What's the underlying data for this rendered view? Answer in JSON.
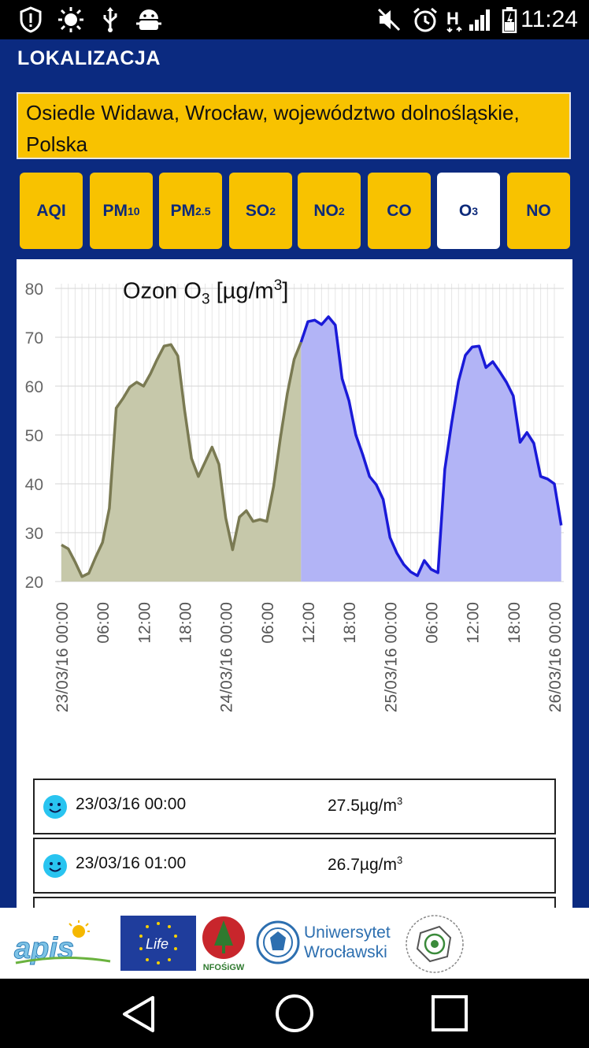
{
  "status": {
    "time": "11:24",
    "left_icons": [
      "alert-icon",
      "brightness-icon",
      "usb-icon",
      "android-debug-icon"
    ],
    "right_icons": [
      "mute-icon",
      "alarm-icon",
      "signal-h-icon",
      "signal-bars-icon",
      "battery-icon"
    ]
  },
  "header": {
    "title": "LOKALIZACJA"
  },
  "location": {
    "text": "Osiedle Widawa, Wrocław, województwo dolnośląskie, Polska"
  },
  "tabs": [
    {
      "label": "AQI",
      "sub": ""
    },
    {
      "label": "PM",
      "sub": "10"
    },
    {
      "label": "PM",
      "sub": "2.5"
    },
    {
      "label": "SO",
      "sub": "2"
    },
    {
      "label": "NO",
      "sub": "2"
    },
    {
      "label": "CO",
      "sub": ""
    },
    {
      "label": "O",
      "sub": "3",
      "active": true
    },
    {
      "label": "NO",
      "sub": ""
    }
  ],
  "chart_title": {
    "main": "Ozon O",
    "sub": "3",
    "unit_pre": " [µg/m",
    "unit_sup": "3",
    "unit_post": "]"
  },
  "chart_data": {
    "type": "area",
    "title": "Ozon O3 [µg/m3]",
    "ylim": [
      20,
      80
    ],
    "y_ticks": [
      "80",
      "70",
      "60",
      "50",
      "40",
      "30",
      "20"
    ],
    "x_tick_labels": [
      "23/03/16 00:00",
      "06:00",
      "12:00",
      "18:00",
      "24/03/16 00:00",
      "06:00",
      "12:00",
      "18:00",
      "25/03/16 00:00",
      "06:00",
      "12:00",
      "18:00",
      "26/03/16 00:00"
    ],
    "x_hours": [
      0,
      6,
      12,
      18,
      24,
      30,
      36,
      42,
      48,
      54,
      60,
      66,
      72
    ],
    "grid": true,
    "split_hour": 35,
    "series": [
      {
        "color_fill": "#c6c8aa",
        "color_line": "#7a7a52",
        "part": "observed"
      },
      {
        "color_fill": "#b2b4f6",
        "color_line": "#1a1ad8",
        "part": "forecast"
      }
    ],
    "points": [
      [
        0,
        27.5
      ],
      [
        1,
        26.7
      ],
      [
        2,
        24
      ],
      [
        3,
        21
      ],
      [
        4,
        21.7
      ],
      [
        5,
        25
      ],
      [
        6,
        28
      ],
      [
        7,
        35
      ],
      [
        8,
        55.5
      ],
      [
        9,
        57.5
      ],
      [
        10,
        59.8
      ],
      [
        11,
        60.8
      ],
      [
        12,
        60
      ],
      [
        13,
        62.5
      ],
      [
        14,
        65.5
      ],
      [
        15,
        68.2
      ],
      [
        16,
        68.5
      ],
      [
        17,
        66.2
      ],
      [
        18,
        55
      ],
      [
        19,
        45.2
      ],
      [
        20,
        41.5
      ],
      [
        21,
        44.5
      ],
      [
        22,
        47.5
      ],
      [
        23,
        44
      ],
      [
        24,
        33
      ],
      [
        25,
        26.5
      ],
      [
        26,
        33.2
      ],
      [
        27,
        34.5
      ],
      [
        28,
        32.3
      ],
      [
        29,
        32.7
      ],
      [
        30,
        32.3
      ],
      [
        31,
        39.5
      ],
      [
        32,
        49.5
      ],
      [
        33,
        58.5
      ],
      [
        34,
        65.5
      ],
      [
        35,
        69
      ],
      [
        36,
        73.2
      ],
      [
        37,
        73.5
      ],
      [
        38,
        72.6
      ],
      [
        39,
        74.2
      ],
      [
        40,
        72.5
      ],
      [
        41,
        61.5
      ],
      [
        42,
        57
      ],
      [
        43,
        50
      ],
      [
        44,
        46
      ],
      [
        45,
        41.5
      ],
      [
        46,
        39.8
      ],
      [
        47,
        36.8
      ],
      [
        48,
        29
      ],
      [
        49,
        25.8
      ],
      [
        50,
        23.5
      ],
      [
        51,
        22
      ],
      [
        52,
        21.2
      ],
      [
        53,
        24.3
      ],
      [
        54,
        22.5
      ],
      [
        55,
        21.8
      ],
      [
        56,
        43
      ],
      [
        57,
        52.5
      ],
      [
        58,
        61
      ],
      [
        59,
        66.3
      ],
      [
        60,
        68
      ],
      [
        61,
        68.2
      ],
      [
        62,
        63.8
      ],
      [
        63,
        65
      ],
      [
        64,
        63
      ],
      [
        65,
        60.8
      ],
      [
        66,
        58
      ],
      [
        67,
        48.5
      ],
      [
        68,
        50.5
      ],
      [
        69,
        48.3
      ],
      [
        70,
        41.5
      ],
      [
        71,
        41
      ],
      [
        72,
        40
      ],
      [
        73,
        31.5
      ]
    ]
  },
  "readings": [
    {
      "time": "23/03/16 00:00",
      "value": "27.5µg/m",
      "unit_sup": "3",
      "icon": "smiley-icon"
    },
    {
      "time": "23/03/16 01:00",
      "value": "26.7µg/m",
      "unit_sup": "3",
      "icon": "smiley-icon"
    }
  ],
  "footer": {
    "logos": [
      "apis-logo",
      "life-logo",
      "nfosigw-logo",
      "uniwersytet-wroclawski-logo",
      "inspektorat-logo"
    ],
    "nfosigw_text": "NFOŚiGW",
    "uni_line1": "Uniwersytet",
    "uni_line2": "Wrocławski"
  },
  "navbar": {
    "icons": [
      "back-icon",
      "home-icon",
      "recents-icon"
    ]
  }
}
